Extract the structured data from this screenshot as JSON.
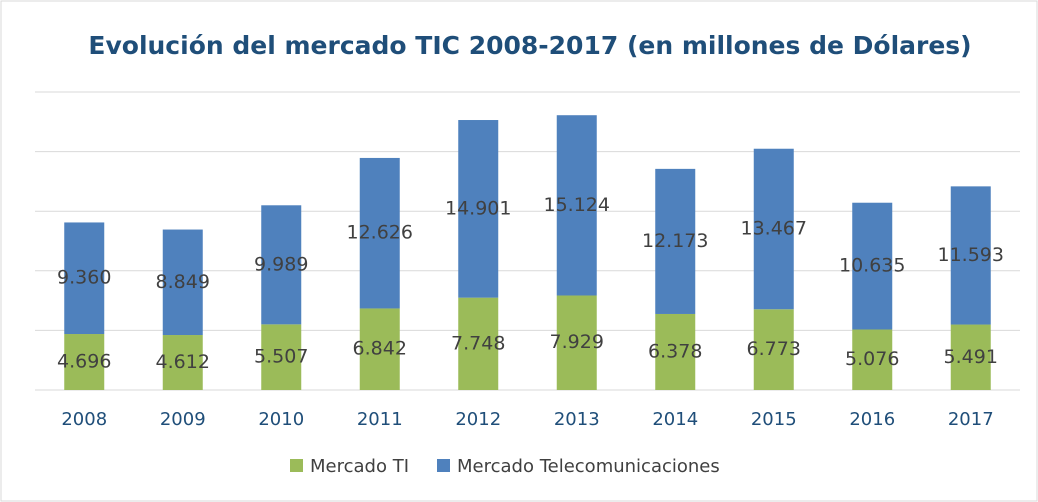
{
  "chart_data": {
    "type": "stacked_bar",
    "title": "Evolución del mercado TIC 2008-2017 (en  millones de Dólares)",
    "categories": [
      "2008",
      "2009",
      "2010",
      "2011",
      "2012",
      "2013",
      "2014",
      "2015",
      "2016",
      "2017"
    ],
    "series": [
      {
        "name": "Mercado TI",
        "color": "#9bbb59",
        "values": [
          4696,
          4612,
          5507,
          6842,
          7748,
          7929,
          6378,
          6773,
          5076,
          5491
        ],
        "value_labels": [
          "4.696",
          "4.612",
          "5.507",
          "6.842",
          "7.748",
          "7.929",
          "6.378",
          "6.773",
          "5.076",
          "5.491"
        ]
      },
      {
        "name": "Mercado Telecomunicaciones",
        "color": "#4f81bd",
        "values": [
          9360,
          8849,
          9989,
          12626,
          14901,
          15124,
          12173,
          13467,
          10635,
          11593
        ],
        "value_labels": [
          "9.360",
          "8.849",
          "9.989",
          "12.626",
          "14.901",
          "15.124",
          "12.173",
          "13.467",
          "10.635",
          "11.593"
        ]
      }
    ],
    "ylim": [
      0,
      25000
    ],
    "yticks": [
      0,
      5000,
      10000,
      15000,
      20000,
      25000
    ],
    "grid": true,
    "legend": "bottom"
  }
}
